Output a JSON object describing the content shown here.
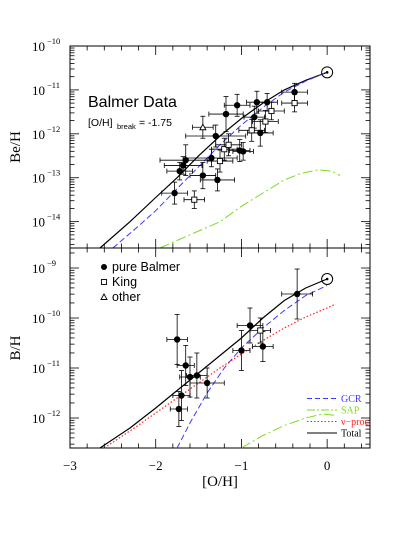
{
  "colors": {
    "total": "#000000",
    "gcr": "#3a3aff",
    "sap": "#7ddc1f",
    "nu_proc": "#ff2020",
    "frame": "#000000"
  },
  "chart_data": [
    {
      "type": "scatter",
      "title": "Balmer Data",
      "annotation": {
        "main": "[O/H]",
        "sub": "break",
        "value": "= -1.75"
      },
      "xlim": [
        -3,
        0.5
      ],
      "ylabel": "Be/H",
      "ylog": true,
      "ylim_exp": [
        -14.6,
        -10
      ],
      "ytick_exponents": [
        -14,
        -13,
        -12,
        -11,
        -10
      ],
      "ytick_labels": [
        "10",
        "10",
        "10",
        "10",
        "10"
      ],
      "ytick_sup": [
        "−14",
        "−13",
        "−12",
        "−11",
        "−10"
      ],
      "series": [
        {
          "kind": "pure Balmer",
          "points": [
            {
              "x": -1.78,
              "y": -13.35,
              "xerr": 0.15,
              "yerr": 0.25
            },
            {
              "x": -1.72,
              "y": -12.85,
              "xerr": 0.15,
              "yerr": 0.2
            },
            {
              "x": -1.68,
              "y": -12.72,
              "xerr": 0.22,
              "yerr": 0.2
            },
            {
              "x": -1.65,
              "y": -12.6,
              "xerr": 0.3,
              "yerr": 0.35
            },
            {
              "x": -1.45,
              "y": -12.95,
              "xerr": 0.15,
              "yerr": 0.3
            },
            {
              "x": -1.35,
              "y": -12.55,
              "xerr": 0.3,
              "yerr": 0.2
            },
            {
              "x": -1.3,
              "y": -12.05,
              "xerr": 0.35,
              "yerr": 0.25
            },
            {
              "x": -1.28,
              "y": -13.05,
              "xerr": 0.2,
              "yerr": 0.25
            },
            {
              "x": -1.18,
              "y": -11.55,
              "xerr": 0.2,
              "yerr": 0.4
            },
            {
              "x": -1.05,
              "y": -11.35,
              "xerr": 0.15,
              "yerr": 0.25
            },
            {
              "x": -1.02,
              "y": -12.38,
              "xerr": 0.12,
              "yerr": 0.25
            },
            {
              "x": -0.98,
              "y": -12.4,
              "xerr": 0.12,
              "yerr": 0.2
            },
            {
              "x": -0.85,
              "y": -11.62,
              "xerr": 0.12,
              "yerr": 0.25
            },
            {
              "x": -0.82,
              "y": -11.28,
              "xerr": 0.12,
              "yerr": 0.25
            },
            {
              "x": -0.78,
              "y": -11.98,
              "xerr": 0.15,
              "yerr": 0.3
            },
            {
              "x": -0.7,
              "y": -11.28,
              "xerr": 0.12,
              "yerr": 0.2
            },
            {
              "x": -0.38,
              "y": -11.05,
              "xerr": 0.15,
              "yerr": 0.2
            }
          ]
        },
        {
          "kind": "King",
          "points": [
            {
              "x": -1.55,
              "y": -13.5,
              "xerr": 0.12,
              "yerr": 0.2
            },
            {
              "x": -1.25,
              "y": -12.62,
              "xerr": 0.15,
              "yerr": 0.25
            },
            {
              "x": -1.2,
              "y": -12.35,
              "xerr": 0.15,
              "yerr": 0.25
            },
            {
              "x": -1.15,
              "y": -12.25,
              "xerr": 0.15,
              "yerr": 0.25
            },
            {
              "x": -0.88,
              "y": -11.92,
              "xerr": 0.15,
              "yerr": 0.25
            },
            {
              "x": -0.72,
              "y": -11.72,
              "xerr": 0.15,
              "yerr": 0.25
            },
            {
              "x": -0.65,
              "y": -11.48,
              "xerr": 0.15,
              "yerr": 0.2
            },
            {
              "x": -0.38,
              "y": -11.3,
              "xerr": 0.15,
              "yerr": 0.2
            }
          ]
        },
        {
          "kind": "other",
          "points": [
            {
              "x": -1.45,
              "y": -11.85,
              "xerr": 0.12,
              "yerr": 0.25
            }
          ]
        },
        {
          "kind": "Total",
          "curve": [
            [
              -2.65,
              -14.6
            ],
            [
              -2.3,
              -14.0
            ],
            [
              -2.0,
              -13.45
            ],
            [
              -1.75,
              -13.0
            ],
            [
              -1.5,
              -12.5
            ],
            [
              -1.25,
              -12.05
            ],
            [
              -1.0,
              -11.65
            ],
            [
              -0.75,
              -11.3
            ],
            [
              -0.5,
              -11.0
            ],
            [
              -0.25,
              -10.78
            ],
            [
              0.0,
              -10.6
            ]
          ]
        },
        {
          "kind": "GCR",
          "curve": [
            [
              -2.5,
              -14.6
            ],
            [
              -2.2,
              -14.1
            ],
            [
              -2.0,
              -13.75
            ],
            [
              -1.75,
              -13.25
            ],
            [
              -1.5,
              -12.75
            ],
            [
              -1.25,
              -12.25
            ],
            [
              -1.0,
              -11.8
            ],
            [
              -0.75,
              -11.4
            ],
            [
              -0.5,
              -11.05
            ],
            [
              -0.25,
              -10.8
            ],
            [
              0.0,
              -10.6
            ]
          ]
        },
        {
          "kind": "SAP",
          "curve": [
            [
              -1.95,
              -14.6
            ],
            [
              -1.6,
              -14.3
            ],
            [
              -1.25,
              -14.0
            ],
            [
              -1.0,
              -13.65
            ],
            [
              -0.75,
              -13.35
            ],
            [
              -0.5,
              -13.05
            ],
            [
              -0.3,
              -12.9
            ],
            [
              -0.1,
              -12.82
            ],
            [
              0.05,
              -12.85
            ],
            [
              0.15,
              -12.95
            ]
          ]
        }
      ],
      "target": {
        "x": 0.0,
        "y": -10.6
      }
    },
    {
      "type": "scatter",
      "xlim": [
        -3,
        0.5
      ],
      "xlabel": "[O/H]",
      "xtick_values": [
        -3,
        -2,
        -1,
        0
      ],
      "xtick_labels": [
        "−3",
        "−2",
        "−1",
        "0"
      ],
      "ylabel": "B/H",
      "ylog": true,
      "ylim_exp": [
        -12.6,
        -8.6
      ],
      "ytick_exponents": [
        -12,
        -11,
        -10,
        -9
      ],
      "ytick_labels": [
        "10",
        "10",
        "10",
        "10"
      ],
      "ytick_sup": [
        "−12",
        "−11",
        "−10",
        "−9"
      ],
      "legend": [
        {
          "label": "pure Balmer",
          "marker": "dot"
        },
        {
          "label": "King",
          "marker": "square"
        },
        {
          "label": "other",
          "marker": "triangle"
        }
      ],
      "legend2": [
        {
          "label": "GCR",
          "style": "dashed",
          "color_key": "gcr"
        },
        {
          "label": "SAP",
          "style": "longdash",
          "color_key": "sap"
        },
        {
          "label": "ν−proc",
          "style": "dotted",
          "color_key": "nu_proc"
        },
        {
          "label": "Total",
          "style": "solid",
          "color_key": "total"
        }
      ],
      "series": [
        {
          "kind": "pure Balmer",
          "points": [
            {
              "x": -1.75,
              "y": -10.43,
              "xerr": 0.12,
              "yerr": 0.5
            },
            {
              "x": -1.73,
              "y": -11.82,
              "xerr": 0.1,
              "yerr": 0.35
            },
            {
              "x": -1.7,
              "y": -11.55,
              "xerr": 0.1,
              "yerr": 0.5
            },
            {
              "x": -1.65,
              "y": -10.95,
              "xerr": 0.1,
              "yerr": 0.4
            },
            {
              "x": -1.6,
              "y": -11.18,
              "xerr": 0.12,
              "yerr": 0.4
            },
            {
              "x": -1.52,
              "y": -11.15,
              "xerr": 0.12,
              "yerr": 0.45
            },
            {
              "x": -1.4,
              "y": -11.3,
              "xerr": 0.2,
              "yerr": 0.3
            },
            {
              "x": -1.0,
              "y": -10.65,
              "xerr": 0.1,
              "yerr": 0.4
            },
            {
              "x": -0.9,
              "y": -10.15,
              "xerr": 0.15,
              "yerr": 0.35
            },
            {
              "x": -0.75,
              "y": -10.57,
              "xerr": 0.12,
              "yerr": 0.3
            },
            {
              "x": -0.35,
              "y": -9.52,
              "xerr": 0.18,
              "yerr": 0.5
            }
          ]
        },
        {
          "kind": "King",
          "points": [
            {
              "x": -0.78,
              "y": -10.25,
              "xerr": 0.12,
              "yerr": 0.25
            }
          ]
        },
        {
          "kind": "Total",
          "curve": [
            [
              -2.65,
              -12.6
            ],
            [
              -2.3,
              -12.2
            ],
            [
              -2.0,
              -11.8
            ],
            [
              -1.75,
              -11.45
            ],
            [
              -1.5,
              -11.1
            ],
            [
              -1.25,
              -10.75
            ],
            [
              -1.0,
              -10.4
            ],
            [
              -0.75,
              -10.0
            ],
            [
              -0.5,
              -9.65
            ],
            [
              -0.25,
              -9.4
            ],
            [
              0.0,
              -9.22
            ]
          ]
        },
        {
          "kind": "GCR",
          "curve": [
            [
              -1.75,
              -12.6
            ],
            [
              -1.6,
              -12.1
            ],
            [
              -1.4,
              -11.5
            ],
            [
              -1.2,
              -11.0
            ],
            [
              -1.0,
              -10.6
            ],
            [
              -0.75,
              -10.2
            ],
            [
              -0.5,
              -9.85
            ],
            [
              -0.25,
              -9.55
            ],
            [
              0.0,
              -9.35
            ]
          ]
        },
        {
          "kind": "SAP",
          "curve": [
            [
              -1.0,
              -12.6
            ],
            [
              -0.75,
              -12.35
            ],
            [
              -0.5,
              -12.15
            ],
            [
              -0.25,
              -12.0
            ],
            [
              -0.05,
              -11.92
            ],
            [
              0.1,
              -11.95
            ]
          ]
        },
        {
          "kind": "ν−proc",
          "curve": [
            [
              -2.6,
              -12.6
            ],
            [
              -2.25,
              -12.2
            ],
            [
              -2.0,
              -11.9
            ],
            [
              -1.75,
              -11.6
            ],
            [
              -1.5,
              -11.3
            ],
            [
              -1.25,
              -11.0
            ],
            [
              -1.0,
              -10.72
            ],
            [
              -0.75,
              -10.45
            ],
            [
              -0.5,
              -10.2
            ],
            [
              -0.25,
              -9.98
            ],
            [
              0.0,
              -9.8
            ],
            [
              0.1,
              -9.72
            ]
          ]
        }
      ],
      "target": {
        "x": 0.0,
        "y": -9.22
      }
    }
  ]
}
